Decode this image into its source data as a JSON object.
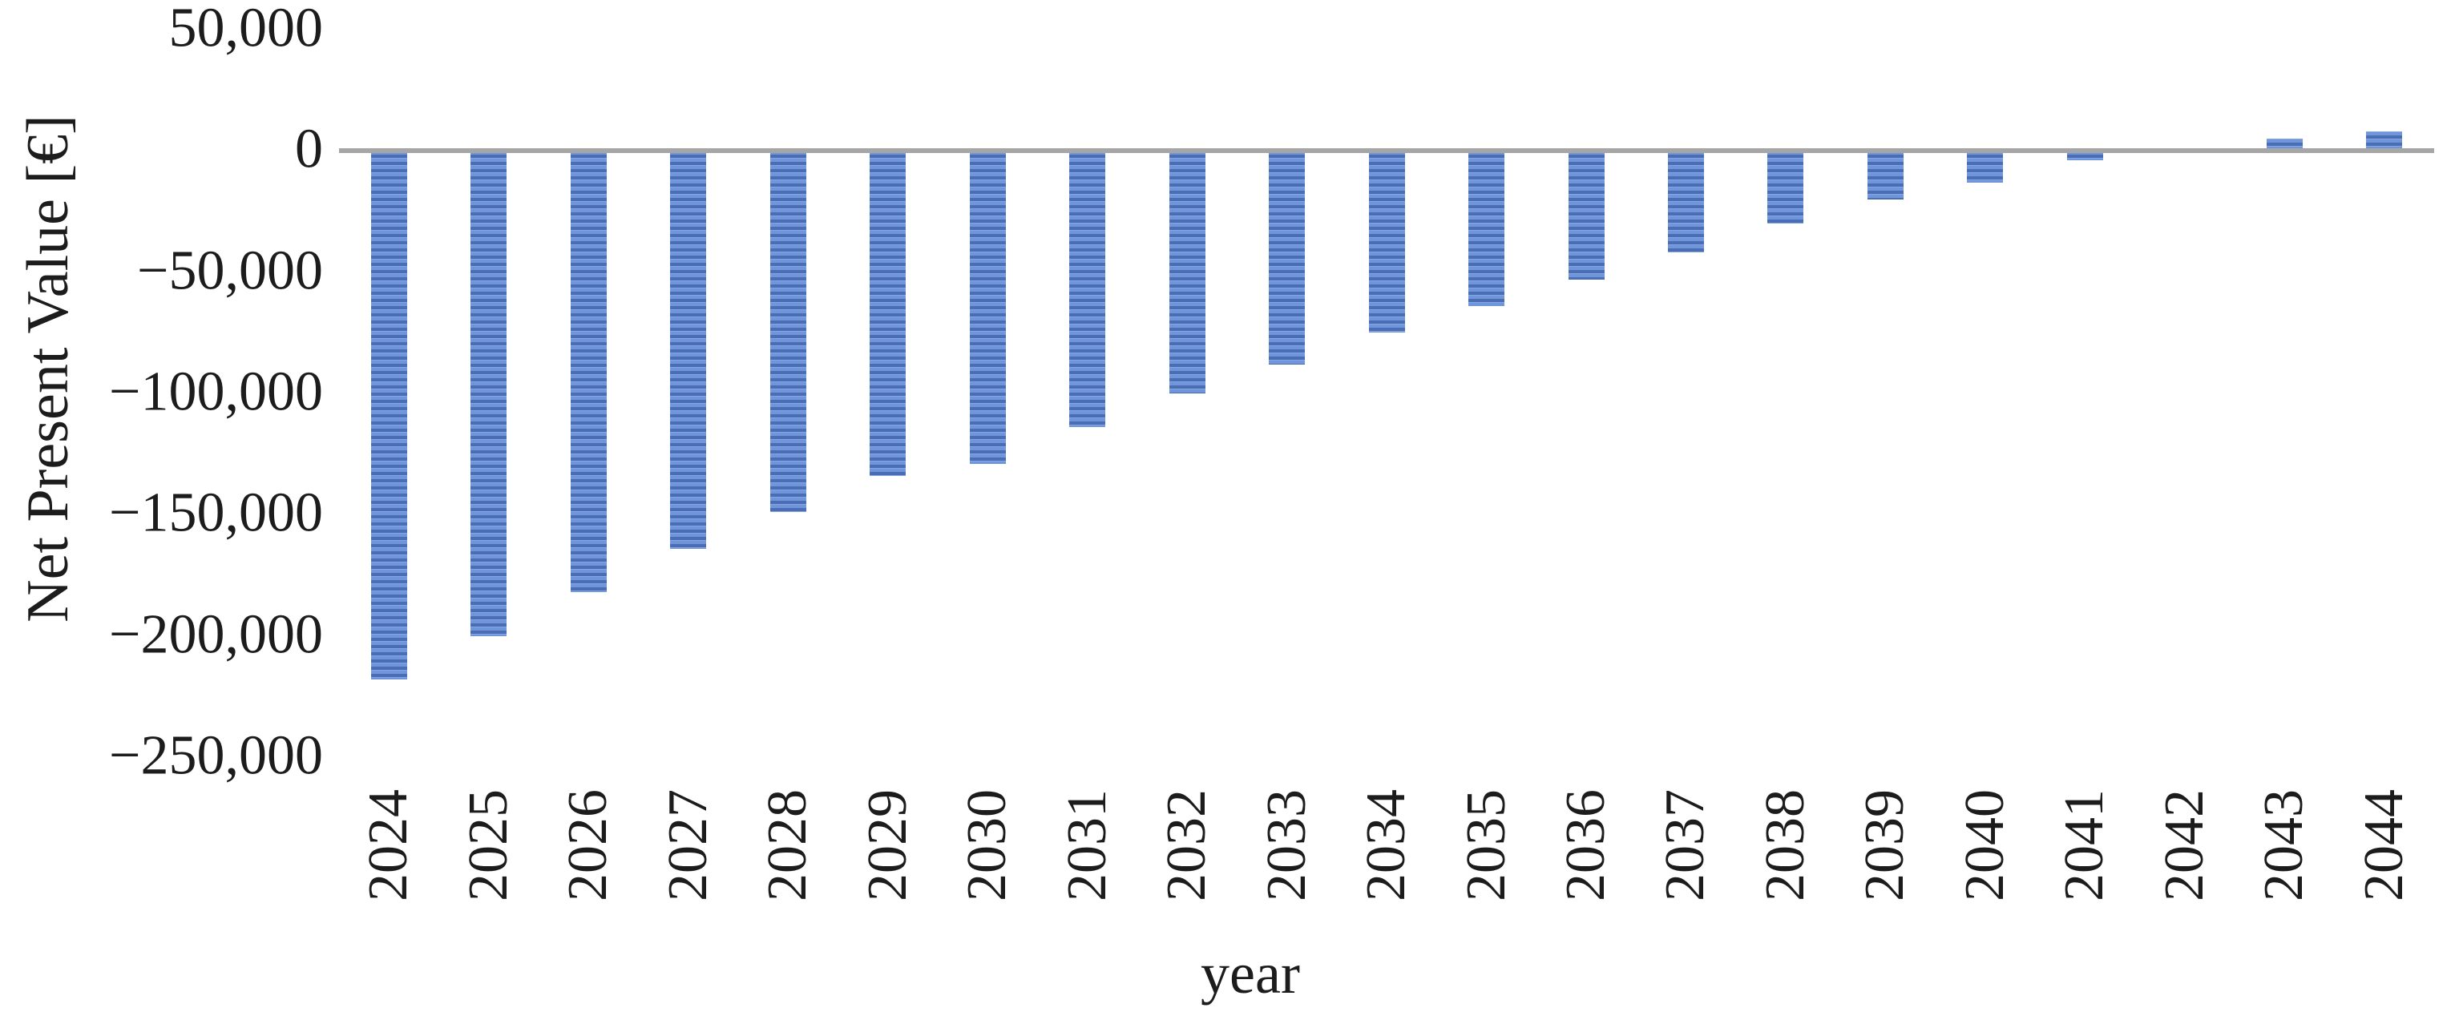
{
  "chart_data": {
    "type": "bar",
    "title": "",
    "xlabel": "year",
    "ylabel": "Net Present Value [€]",
    "categories": [
      "2024",
      "2025",
      "2026",
      "2027",
      "2028",
      "2029",
      "2030",
      "2031",
      "2032",
      "2033",
      "2034",
      "2035",
      "2036",
      "2037",
      "2038",
      "2039",
      "2040",
      "2041",
      "2042",
      "2043",
      "2044"
    ],
    "values": [
      -218000,
      -200000,
      -182000,
      -164000,
      -149000,
      -134000,
      -129000,
      -114000,
      -100000,
      -88000,
      -75000,
      -64000,
      -53000,
      -42000,
      -30000,
      -20000,
      -13000,
      -4000,
      0,
      5000,
      8000
    ],
    "ylim": [
      -250000,
      50000
    ],
    "yticks": [
      {
        "value": 50000,
        "label": "50,000"
      },
      {
        "value": 0,
        "label": "0"
      },
      {
        "value": -50000,
        "label": "−50,000"
      },
      {
        "value": -100000,
        "label": "−100,000"
      },
      {
        "value": -150000,
        "label": "−150,000"
      },
      {
        "value": -200000,
        "label": "−200,000"
      },
      {
        "value": -250000,
        "label": "−250,000"
      }
    ],
    "grid": "off",
    "legend": "none",
    "colors": {
      "bar_light": "#6f95db",
      "bar_stripe_dark": "#4a6db4",
      "bar_stripe_highlight": "#85a5e4",
      "axis_line": "#a6a6a6",
      "text": "#1c1c1c",
      "background": "#ffffff"
    }
  }
}
